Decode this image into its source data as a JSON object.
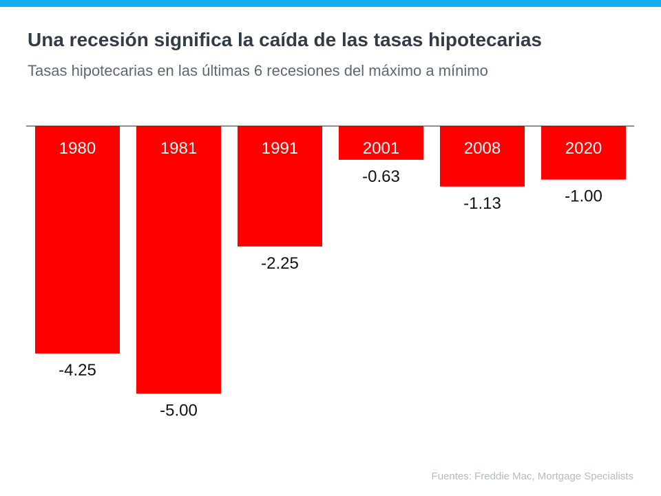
{
  "header": {
    "title": "Una recesión significa la caída de las tasas hipotecarias",
    "subtitle": "Tasas hipotecarias en las últimas 6 recesiones del máximo a mínimo"
  },
  "footer": {
    "source": "Fuentes:  Freddie Mac, Mortgage Specialists"
  },
  "colors": {
    "accent_bar": "#13aef0",
    "bars": "#ff0000",
    "title": "#333c46",
    "subtitle": "#5c6970"
  },
  "chart_data": {
    "type": "bar",
    "categories": [
      "1980",
      "1981",
      "1991",
      "2001",
      "2008",
      "2020"
    ],
    "values": [
      -4.25,
      -5.0,
      -2.25,
      -0.63,
      -1.13,
      -1.0
    ],
    "value_labels": [
      "-4.25",
      "-5.00",
      "-2.25",
      "-0.63",
      "-1.13",
      "-1.00"
    ],
    "title": "Una recesión significa la caída de las tasas hipotecarias",
    "subtitle": "Tasas hipotecarias en las últimas 6 recesiones del máximo a mínimo",
    "ylim": [
      -5.5,
      0
    ],
    "grid": false,
    "category_labels_inside_bars": true
  }
}
